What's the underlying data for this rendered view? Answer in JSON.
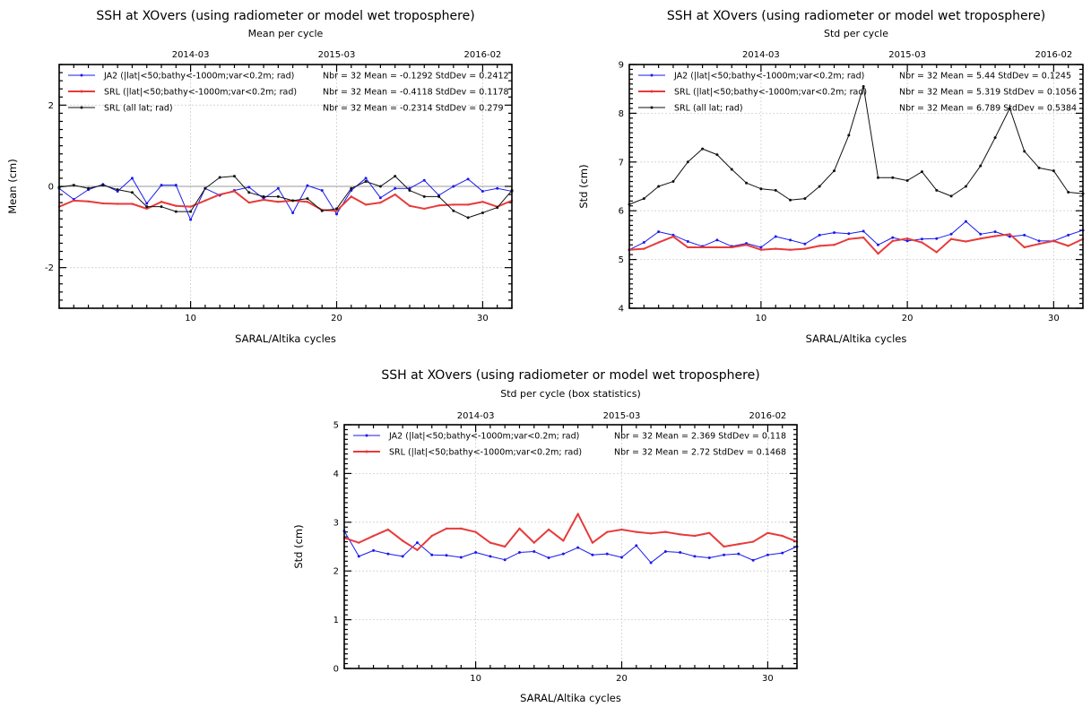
{
  "chart_data": [
    {
      "type": "line",
      "title": "SSH at XOvers (using radiometer or model wet troposphere)",
      "subtitle": "Mean per cycle",
      "xlabel": "SARAL/Altika cycles",
      "ylabel": "Mean  (cm)",
      "xlim": [
        1,
        32
      ],
      "ylim": [
        -3,
        3
      ],
      "xticks": [
        "10",
        "20",
        "30"
      ],
      "yticks": [
        "-2",
        "0",
        "2"
      ],
      "top_ticks": [
        {
          "cycle": 10,
          "label": "2014-03"
        },
        {
          "cycle": 20,
          "label": "2015-03"
        },
        {
          "cycle": 30,
          "label": "2016-02"
        }
      ],
      "zero_line": true,
      "grid": true,
      "legend_position": "top",
      "series": [
        {
          "name": "JA2 (|lat|<50;bathy<-1000m;var<0.2m; rad)",
          "stats": "Nbr = 32 Mean = -0.1292 StdDev = 0.2412",
          "color": "#1a1aee",
          "width": 1,
          "marker": "dot",
          "x": [
            1,
            2,
            3,
            4,
            5,
            6,
            7,
            8,
            9,
            10,
            11,
            12,
            13,
            14,
            15,
            16,
            17,
            18,
            19,
            20,
            21,
            22,
            23,
            24,
            25,
            26,
            27,
            28,
            29,
            30,
            31,
            32
          ],
          "values": [
            -0.05,
            -0.32,
            -0.08,
            0.05,
            -0.12,
            0.2,
            -0.42,
            0.03,
            0.03,
            -0.82,
            -0.05,
            -0.22,
            -0.1,
            -0.02,
            -0.3,
            -0.05,
            -0.65,
            0.02,
            -0.1,
            -0.68,
            -0.1,
            0.2,
            -0.28,
            -0.05,
            -0.05,
            0.15,
            -0.22,
            0.0,
            0.18,
            -0.12,
            -0.05,
            -0.12
          ]
        },
        {
          "name": "SRL (|lat|<50;bathy<-1000m;var<0.2m; rad)",
          "stats": "Nbr = 32 Mean = -0.4118 StdDev = 0.1178",
          "color": "#e83a3a",
          "width": 2,
          "marker": "none",
          "x": [
            1,
            2,
            3,
            4,
            5,
            6,
            7,
            8,
            9,
            10,
            11,
            12,
            13,
            14,
            15,
            16,
            17,
            18,
            19,
            20,
            21,
            22,
            23,
            24,
            25,
            26,
            27,
            28,
            29,
            30,
            31,
            32
          ],
          "values": [
            -0.5,
            -0.35,
            -0.37,
            -0.42,
            -0.43,
            -0.43,
            -0.55,
            -0.38,
            -0.48,
            -0.5,
            -0.35,
            -0.2,
            -0.12,
            -0.4,
            -0.33,
            -0.38,
            -0.35,
            -0.38,
            -0.58,
            -0.6,
            -0.25,
            -0.45,
            -0.4,
            -0.2,
            -0.48,
            -0.55,
            -0.47,
            -0.45,
            -0.45,
            -0.38,
            -0.5,
            -0.35
          ]
        },
        {
          "name": "SRL (all lat; rad)",
          "stats": "Nbr = 32 Mean = -0.2314 StdDev = 0.279",
          "color": "#111111",
          "width": 1,
          "marker": "dot",
          "x": [
            1,
            2,
            3,
            4,
            5,
            6,
            7,
            8,
            9,
            10,
            11,
            12,
            13,
            14,
            15,
            16,
            17,
            18,
            19,
            20,
            21,
            22,
            23,
            24,
            25,
            26,
            27,
            28,
            29,
            30,
            31,
            32
          ],
          "values": [
            -0.02,
            0.03,
            -0.05,
            0.03,
            -0.08,
            -0.15,
            -0.5,
            -0.5,
            -0.62,
            -0.62,
            -0.05,
            0.22,
            0.25,
            -0.15,
            -0.25,
            -0.25,
            -0.35,
            -0.3,
            -0.6,
            -0.55,
            -0.05,
            0.12,
            0.0,
            0.25,
            -0.1,
            -0.25,
            -0.25,
            -0.6,
            -0.77,
            -0.65,
            -0.52,
            -0.1
          ]
        }
      ]
    },
    {
      "type": "line",
      "title": "SSH at XOvers (using radiometer or model wet troposphere)",
      "subtitle": "Std per cycle",
      "xlabel": "SARAL/Altika cycles",
      "ylabel": "Std  (cm)",
      "xlim": [
        1,
        32
      ],
      "ylim": [
        4,
        9
      ],
      "xticks": [
        "10",
        "20",
        "30"
      ],
      "yticks": [
        "4",
        "5",
        "6",
        "7",
        "8",
        "9"
      ],
      "top_ticks": [
        {
          "cycle": 10,
          "label": "2014-03"
        },
        {
          "cycle": 20,
          "label": "2015-03"
        },
        {
          "cycle": 30,
          "label": "2016-02"
        }
      ],
      "zero_line": false,
      "grid": true,
      "legend_position": "top",
      "series": [
        {
          "name": "JA2 (|lat|<50;bathy<-1000m;var<0.2m; rad)",
          "stats": "Nbr = 32 Mean = 5.44   StdDev = 0.1245",
          "color": "#1a1aee",
          "width": 1,
          "marker": "dot",
          "x": [
            1,
            2,
            3,
            4,
            5,
            6,
            7,
            8,
            9,
            10,
            11,
            12,
            13,
            14,
            15,
            16,
            17,
            18,
            19,
            20,
            21,
            22,
            23,
            24,
            25,
            26,
            27,
            28,
            29,
            30,
            31,
            32
          ],
          "values": [
            5.2,
            5.35,
            5.57,
            5.5,
            5.37,
            5.27,
            5.4,
            5.27,
            5.33,
            5.25,
            5.47,
            5.4,
            5.32,
            5.5,
            5.55,
            5.53,
            5.58,
            5.3,
            5.45,
            5.38,
            5.42,
            5.43,
            5.52,
            5.78,
            5.52,
            5.57,
            5.47,
            5.5,
            5.38,
            5.38,
            5.5,
            5.6
          ]
        },
        {
          "name": "SRL (|lat|<50;bathy<-1000m;var<0.2m; rad)",
          "stats": "Nbr = 32 Mean = 5.319 StdDev = 0.1056",
          "color": "#e83a3a",
          "width": 2,
          "marker": "none",
          "x": [
            1,
            2,
            3,
            4,
            5,
            6,
            7,
            8,
            9,
            10,
            11,
            12,
            13,
            14,
            15,
            16,
            17,
            18,
            19,
            20,
            21,
            22,
            23,
            24,
            25,
            26,
            27,
            28,
            29,
            30,
            31,
            32
          ],
          "values": [
            5.2,
            5.22,
            5.35,
            5.47,
            5.25,
            5.25,
            5.25,
            5.25,
            5.3,
            5.2,
            5.22,
            5.2,
            5.22,
            5.28,
            5.3,
            5.42,
            5.45,
            5.12,
            5.38,
            5.43,
            5.35,
            5.15,
            5.42,
            5.37,
            5.43,
            5.48,
            5.52,
            5.25,
            5.32,
            5.38,
            5.28,
            5.42
          ]
        },
        {
          "name": "SRL (all lat; rad)",
          "stats": "Nbr = 32 Mean = 6.789 StdDev = 0.5384",
          "color": "#111111",
          "width": 1,
          "marker": "dot",
          "x": [
            1,
            2,
            3,
            4,
            5,
            6,
            7,
            8,
            9,
            10,
            11,
            12,
            13,
            14,
            15,
            16,
            17,
            18,
            19,
            20,
            21,
            22,
            23,
            24,
            25,
            26,
            27,
            28,
            29,
            30,
            31,
            32
          ],
          "values": [
            6.13,
            6.25,
            6.5,
            6.6,
            7.0,
            7.27,
            7.15,
            6.85,
            6.57,
            6.45,
            6.42,
            6.22,
            6.25,
            6.5,
            6.82,
            7.55,
            8.55,
            6.68,
            6.68,
            6.62,
            6.8,
            6.42,
            6.3,
            6.5,
            6.92,
            7.5,
            8.1,
            7.22,
            6.88,
            6.82,
            6.38,
            6.35
          ]
        }
      ]
    },
    {
      "type": "line",
      "title": "SSH at XOvers (using radiometer or model wet troposphere)",
      "subtitle": "Std per cycle (box statistics)",
      "xlabel": "SARAL/Altika cycles",
      "ylabel": "Std  (cm)",
      "xlim": [
        1,
        32
      ],
      "ylim": [
        0,
        5
      ],
      "xticks": [
        "10",
        "20",
        "30"
      ],
      "yticks": [
        "0",
        "1",
        "2",
        "3",
        "4",
        "5"
      ],
      "top_ticks": [
        {
          "cycle": 10,
          "label": "2014-03"
        },
        {
          "cycle": 20,
          "label": "2015-03"
        },
        {
          "cycle": 30,
          "label": "2016-02"
        }
      ],
      "zero_line": false,
      "grid": true,
      "legend_position": "top",
      "series": [
        {
          "name": "JA2 (|lat|<50;bathy<-1000m;var<0.2m; rad)",
          "stats": "Nbr = 32 Mean = 2.369  StdDev = 0.118",
          "color": "#1a1aee",
          "width": 1,
          "marker": "dot",
          "x": [
            1,
            2,
            3,
            4,
            5,
            6,
            7,
            8,
            9,
            10,
            11,
            12,
            13,
            14,
            15,
            16,
            17,
            18,
            19,
            20,
            21,
            22,
            23,
            24,
            25,
            26,
            27,
            28,
            29,
            30,
            31,
            32
          ],
          "values": [
            2.82,
            2.3,
            2.42,
            2.35,
            2.3,
            2.58,
            2.33,
            2.32,
            2.28,
            2.38,
            2.3,
            2.23,
            2.38,
            2.4,
            2.27,
            2.35,
            2.48,
            2.33,
            2.35,
            2.28,
            2.52,
            2.17,
            2.4,
            2.38,
            2.3,
            2.27,
            2.33,
            2.35,
            2.22,
            2.33,
            2.37,
            2.5
          ]
        },
        {
          "name": "SRL (|lat|<50;bathy<-1000m;var<0.2m; rad)",
          "stats": "Nbr = 32 Mean = 2.72   StdDev = 0.1468",
          "color": "#e83a3a",
          "width": 2,
          "marker": "none",
          "x": [
            1,
            2,
            3,
            4,
            5,
            6,
            7,
            8,
            9,
            10,
            11,
            12,
            13,
            14,
            15,
            16,
            17,
            18,
            19,
            20,
            21,
            22,
            23,
            24,
            25,
            26,
            27,
            28,
            29,
            30,
            31,
            32
          ],
          "values": [
            2.68,
            2.58,
            2.72,
            2.85,
            2.62,
            2.43,
            2.72,
            2.87,
            2.87,
            2.8,
            2.58,
            2.5,
            2.87,
            2.58,
            2.85,
            2.62,
            3.17,
            2.58,
            2.8,
            2.85,
            2.8,
            2.77,
            2.8,
            2.75,
            2.72,
            2.78,
            2.5,
            2.55,
            2.6,
            2.78,
            2.72,
            2.6
          ]
        }
      ]
    }
  ]
}
